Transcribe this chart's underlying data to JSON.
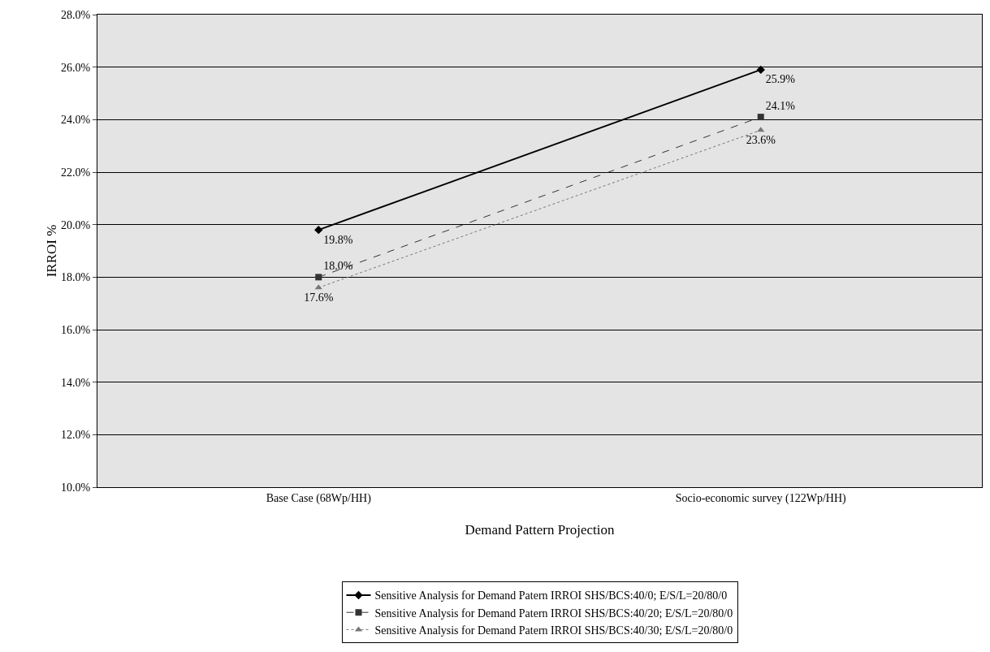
{
  "chart_data": {
    "type": "line",
    "xlabel": "Demand Pattern Projection",
    "ylabel": "IRROI %",
    "categories": [
      "Base Case (68Wp/HH)",
      "Socio-economic survey (122Wp/HH)"
    ],
    "series": [
      {
        "name": "Sensitive Analysis for Demand Patern IRROI SHS/BCS:40/0; E/S/L=20/80/0",
        "color": "#000000",
        "values": [
          19.8,
          25.9
        ],
        "marker": "diamond",
        "line_style": "solid"
      },
      {
        "name": "Sensitive Analysis for Demand Patern IRROI SHS/BCS:40/20; E/S/L=20/80/0",
        "color": "#333333",
        "values": [
          18.0,
          24.1
        ],
        "marker": "square",
        "line_style": "dashed"
      },
      {
        "name": "Sensitive Analysis for Demand Patern IRROI SHS/BCS:40/30; E/S/L=20/80/0",
        "color": "#777777",
        "values": [
          17.6,
          23.6
        ],
        "marker": "triangle",
        "line_style": "dotted"
      }
    ],
    "ylim": [
      10,
      28
    ],
    "yticks": [
      {
        "value": 10,
        "label": "10.0%"
      },
      {
        "value": 12,
        "label": "12.0%"
      },
      {
        "value": 14,
        "label": "14.0%"
      },
      {
        "value": 16,
        "label": "16.0%"
      },
      {
        "value": 18,
        "label": "18.0%"
      },
      {
        "value": 20,
        "label": "20.0%"
      },
      {
        "value": 22,
        "label": "22.0%"
      },
      {
        "value": 24,
        "label": "24.0%"
      },
      {
        "value": 26,
        "label": "26.0%"
      },
      {
        "value": 28,
        "label": "28.0%"
      }
    ],
    "value_labels": [
      [
        "19.8%",
        "25.9%"
      ],
      [
        "18.0%",
        "24.1%"
      ],
      [
        "17.6%",
        "23.6%"
      ]
    ],
    "grid": "y",
    "legend": "bottom"
  }
}
